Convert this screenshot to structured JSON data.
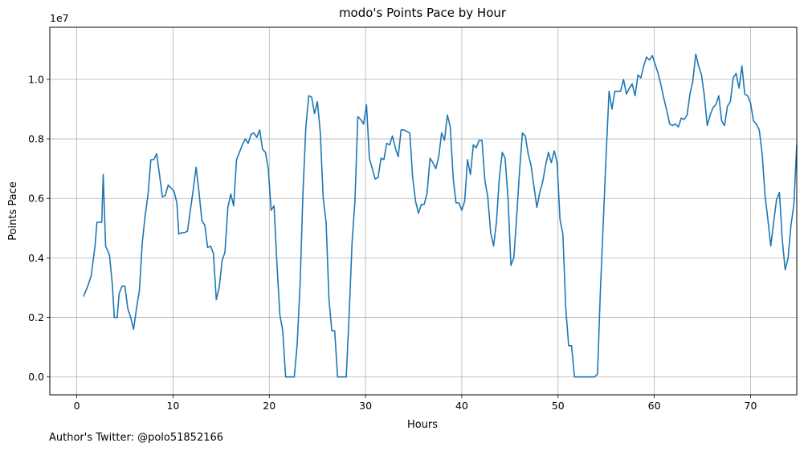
{
  "chart_data": {
    "type": "line",
    "title": "modo's Points Pace by Hour",
    "xlabel": "Hours",
    "ylabel": "Points Pace",
    "y_multiplier_label": "1e7",
    "xlim": [
      -2.8,
      74.8
    ],
    "ylim": [
      -600000,
      11750000
    ],
    "x_ticks": [
      0,
      10,
      20,
      30,
      40,
      50,
      60,
      70
    ],
    "y_ticks": [
      0,
      2000000,
      4000000,
      6000000,
      8000000,
      10000000
    ],
    "y_tick_labels": [
      "0.0",
      "0.2",
      "0.4",
      "0.6",
      "0.8",
      "1.0"
    ],
    "grid": true,
    "line_color": "#1f77b4",
    "series": [
      {
        "points": [
          [
            0.7,
            2700000
          ],
          [
            1.2,
            3100000
          ],
          [
            1.5,
            3400000
          ],
          [
            1.9,
            4400000
          ],
          [
            2.1,
            5200000
          ],
          [
            2.6,
            5200000
          ],
          [
            2.75,
            6800000
          ],
          [
            3.0,
            4400000
          ],
          [
            3.4,
            4100000
          ],
          [
            3.7,
            3100000
          ],
          [
            3.9,
            2000000
          ],
          [
            4.2,
            2000000
          ],
          [
            4.4,
            2800000
          ],
          [
            4.7,
            3050000
          ],
          [
            5.0,
            3050000
          ],
          [
            5.3,
            2300000
          ],
          [
            5.6,
            2000000
          ],
          [
            5.9,
            1600000
          ],
          [
            6.2,
            2300000
          ],
          [
            6.5,
            2900000
          ],
          [
            6.8,
            4500000
          ],
          [
            7.1,
            5400000
          ],
          [
            7.4,
            6100000
          ],
          [
            7.7,
            7300000
          ],
          [
            8.0,
            7300000
          ],
          [
            8.3,
            7500000
          ],
          [
            8.6,
            6800000
          ],
          [
            8.9,
            6050000
          ],
          [
            9.2,
            6100000
          ],
          [
            9.5,
            6450000
          ],
          [
            9.8,
            6350000
          ],
          [
            10.1,
            6250000
          ],
          [
            10.4,
            5850000
          ],
          [
            10.6,
            4800000
          ],
          [
            10.9,
            4850000
          ],
          [
            11.2,
            4850000
          ],
          [
            11.5,
            4900000
          ],
          [
            11.8,
            5600000
          ],
          [
            12.1,
            6300000
          ],
          [
            12.4,
            7050000
          ],
          [
            12.7,
            6200000
          ],
          [
            13.0,
            5250000
          ],
          [
            13.3,
            5100000
          ],
          [
            13.6,
            4350000
          ],
          [
            13.9,
            4400000
          ],
          [
            14.2,
            4150000
          ],
          [
            14.5,
            2600000
          ],
          [
            14.8,
            3000000
          ],
          [
            15.1,
            3900000
          ],
          [
            15.4,
            4200000
          ],
          [
            15.7,
            5700000
          ],
          [
            16.0,
            6150000
          ],
          [
            16.3,
            5750000
          ],
          [
            16.6,
            7300000
          ],
          [
            16.9,
            7550000
          ],
          [
            17.2,
            7800000
          ],
          [
            17.5,
            8000000
          ],
          [
            17.8,
            7850000
          ],
          [
            18.1,
            8150000
          ],
          [
            18.4,
            8200000
          ],
          [
            18.7,
            8050000
          ],
          [
            19.0,
            8300000
          ],
          [
            19.3,
            7650000
          ],
          [
            19.6,
            7550000
          ],
          [
            19.9,
            7000000
          ],
          [
            20.2,
            5600000
          ],
          [
            20.5,
            5750000
          ],
          [
            20.8,
            3800000
          ],
          [
            21.1,
            2100000
          ],
          [
            21.4,
            1550000
          ],
          [
            21.7,
            0
          ],
          [
            22.0,
            0
          ],
          [
            22.3,
            0
          ],
          [
            22.6,
            0
          ],
          [
            22.9,
            1100000
          ],
          [
            23.2,
            3100000
          ],
          [
            23.5,
            6200000
          ],
          [
            23.8,
            8400000
          ],
          [
            24.1,
            9450000
          ],
          [
            24.4,
            9400000
          ],
          [
            24.7,
            8850000
          ],
          [
            25.0,
            9250000
          ],
          [
            25.3,
            8200000
          ],
          [
            25.6,
            6000000
          ],
          [
            25.9,
            5200000
          ],
          [
            26.2,
            2600000
          ],
          [
            26.5,
            1550000
          ],
          [
            26.8,
            1550000
          ],
          [
            27.1,
            0
          ],
          [
            27.4,
            0
          ],
          [
            27.7,
            0
          ],
          [
            28.0,
            0
          ],
          [
            28.3,
            2100000
          ],
          [
            28.6,
            4500000
          ],
          [
            28.9,
            5900000
          ],
          [
            29.2,
            8750000
          ],
          [
            29.5,
            8650000
          ],
          [
            29.8,
            8500000
          ],
          [
            30.1,
            9150000
          ],
          [
            30.4,
            7350000
          ],
          [
            30.7,
            7000000
          ],
          [
            31.0,
            6650000
          ],
          [
            31.3,
            6700000
          ],
          [
            31.6,
            7350000
          ],
          [
            31.9,
            7300000
          ],
          [
            32.2,
            7850000
          ],
          [
            32.5,
            7800000
          ],
          [
            32.8,
            8100000
          ],
          [
            33.1,
            7700000
          ],
          [
            33.4,
            7400000
          ],
          [
            33.7,
            8300000
          ],
          [
            34.0,
            8300000
          ],
          [
            34.3,
            8250000
          ],
          [
            34.6,
            8200000
          ],
          [
            34.9,
            6700000
          ],
          [
            35.2,
            5900000
          ],
          [
            35.5,
            5500000
          ],
          [
            35.8,
            5800000
          ],
          [
            36.1,
            5800000
          ],
          [
            36.4,
            6200000
          ],
          [
            36.7,
            7350000
          ],
          [
            37.0,
            7200000
          ],
          [
            37.3,
            7000000
          ],
          [
            37.6,
            7400000
          ],
          [
            37.9,
            8200000
          ],
          [
            38.2,
            7950000
          ],
          [
            38.5,
            8800000
          ],
          [
            38.8,
            8400000
          ],
          [
            39.1,
            6700000
          ],
          [
            39.4,
            5850000
          ],
          [
            39.7,
            5850000
          ],
          [
            40.0,
            5600000
          ],
          [
            40.3,
            5900000
          ],
          [
            40.6,
            7300000
          ],
          [
            40.9,
            6800000
          ],
          [
            41.2,
            7800000
          ],
          [
            41.5,
            7700000
          ],
          [
            41.8,
            7950000
          ],
          [
            42.1,
            7950000
          ],
          [
            42.4,
            6600000
          ],
          [
            42.7,
            6050000
          ],
          [
            43.0,
            4850000
          ],
          [
            43.3,
            4400000
          ],
          [
            43.6,
            5200000
          ],
          [
            43.9,
            6700000
          ],
          [
            44.2,
            7550000
          ],
          [
            44.5,
            7350000
          ],
          [
            44.8,
            6000000
          ],
          [
            45.1,
            3750000
          ],
          [
            45.4,
            4000000
          ],
          [
            45.7,
            5400000
          ],
          [
            46.0,
            6900000
          ],
          [
            46.3,
            8200000
          ],
          [
            46.6,
            8100000
          ],
          [
            46.9,
            7500000
          ],
          [
            47.2,
            7100000
          ],
          [
            47.5,
            6400000
          ],
          [
            47.8,
            5700000
          ],
          [
            48.1,
            6200000
          ],
          [
            48.4,
            6550000
          ],
          [
            48.7,
            7100000
          ],
          [
            49.0,
            7550000
          ],
          [
            49.3,
            7200000
          ],
          [
            49.6,
            7600000
          ],
          [
            49.9,
            7200000
          ],
          [
            50.2,
            5300000
          ],
          [
            50.5,
            4800000
          ],
          [
            50.8,
            2300000
          ],
          [
            51.1,
            1050000
          ],
          [
            51.4,
            1050000
          ],
          [
            51.7,
            0
          ],
          [
            52.0,
            0
          ],
          [
            52.3,
            0
          ],
          [
            52.6,
            0
          ],
          [
            52.9,
            0
          ],
          [
            53.2,
            0
          ],
          [
            53.5,
            0
          ],
          [
            53.8,
            0
          ],
          [
            54.1,
            100000
          ],
          [
            54.4,
            2900000
          ],
          [
            54.7,
            5200000
          ],
          [
            55.0,
            7500000
          ],
          [
            55.3,
            9600000
          ],
          [
            55.6,
            9000000
          ],
          [
            55.9,
            9600000
          ],
          [
            56.2,
            9600000
          ],
          [
            56.5,
            9600000
          ],
          [
            56.8,
            10000000
          ],
          [
            57.1,
            9500000
          ],
          [
            57.4,
            9700000
          ],
          [
            57.7,
            9850000
          ],
          [
            58.0,
            9450000
          ],
          [
            58.3,
            10150000
          ],
          [
            58.6,
            10050000
          ],
          [
            58.9,
            10450000
          ],
          [
            59.2,
            10750000
          ],
          [
            59.5,
            10650000
          ],
          [
            59.8,
            10800000
          ],
          [
            60.1,
            10500000
          ],
          [
            60.4,
            10200000
          ],
          [
            60.7,
            9800000
          ],
          [
            61.0,
            9350000
          ],
          [
            61.3,
            8950000
          ],
          [
            61.6,
            8500000
          ],
          [
            61.9,
            8450000
          ],
          [
            62.2,
            8500000
          ],
          [
            62.5,
            8400000
          ],
          [
            62.8,
            8700000
          ],
          [
            63.1,
            8650000
          ],
          [
            63.4,
            8800000
          ],
          [
            63.7,
            9500000
          ],
          [
            64.0,
            9950000
          ],
          [
            64.3,
            10850000
          ],
          [
            64.6,
            10450000
          ],
          [
            64.9,
            10150000
          ],
          [
            65.2,
            9450000
          ],
          [
            65.5,
            8450000
          ],
          [
            65.8,
            8800000
          ],
          [
            66.1,
            9050000
          ],
          [
            66.4,
            9150000
          ],
          [
            66.7,
            9450000
          ],
          [
            67.0,
            8600000
          ],
          [
            67.3,
            8450000
          ],
          [
            67.6,
            9100000
          ],
          [
            67.9,
            9250000
          ],
          [
            68.2,
            10050000
          ],
          [
            68.5,
            10200000
          ],
          [
            68.8,
            9700000
          ],
          [
            69.1,
            10450000
          ],
          [
            69.4,
            9500000
          ],
          [
            69.7,
            9450000
          ],
          [
            70.0,
            9200000
          ],
          [
            70.3,
            8600000
          ],
          [
            70.6,
            8500000
          ],
          [
            70.9,
            8300000
          ],
          [
            71.2,
            7500000
          ],
          [
            71.5,
            6100000
          ],
          [
            71.8,
            5300000
          ],
          [
            72.1,
            4400000
          ],
          [
            72.4,
            5200000
          ],
          [
            72.7,
            5950000
          ],
          [
            73.0,
            6200000
          ],
          [
            73.3,
            4600000
          ],
          [
            73.6,
            3600000
          ],
          [
            73.9,
            4000000
          ],
          [
            74.2,
            5100000
          ],
          [
            74.5,
            5800000
          ],
          [
            74.8,
            7800000
          ]
        ]
      }
    ],
    "footer": "Author's Twitter: @polo51852166"
  }
}
